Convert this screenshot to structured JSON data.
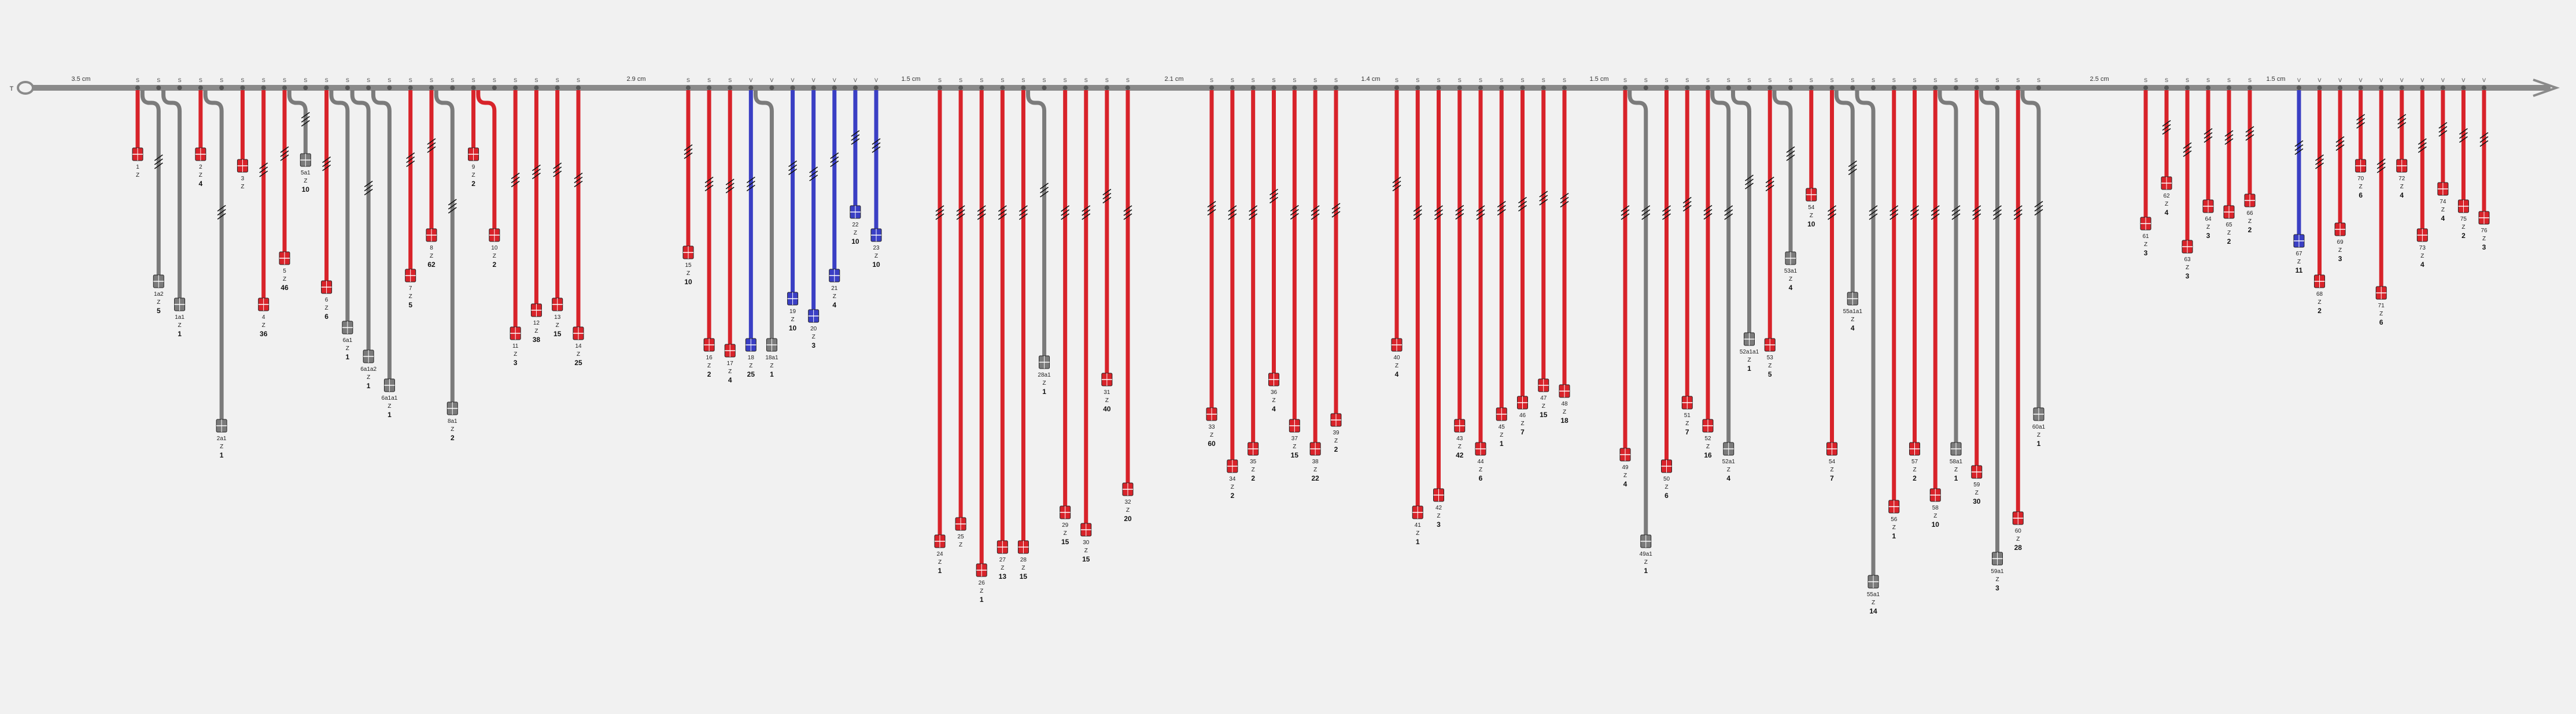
{
  "colors": {
    "red": "#d8232a",
    "blue": "#3a3fc4",
    "gray": "#7b7b7b",
    "trunk": "#8a8a8a",
    "background": "#f1f1f1"
  },
  "trunk": {
    "left_label": "T",
    "segment_labels": [
      "3.5 cm",
      "2.9 cm",
      "1.5 cm",
      "2.1 cm",
      "1.4 cm",
      "1.5 cm",
      "2.5 cm",
      "1.5 cm"
    ]
  },
  "legend_symbols": {
    "splice": "S",
    "v_splice": "V",
    "conn_marker": "Z"
  },
  "groups": [
    {
      "name": "group-1",
      "nodes": [
        {
          "code": "S",
          "wires": [
            {
              "c": "red",
              "len": 0.1,
              "id": "1",
              "q": ""
            },
            {
              "c": "gray",
              "len": 0.32,
              "id": "1a2",
              "q": "5",
              "curve": true,
              "zig": true
            },
            {
              "c": "gray",
              "len": 0.36,
              "id": "1a1",
              "q": "1",
              "curve": true
            }
          ]
        },
        {
          "code": "S",
          "wires": [
            {
              "c": "red",
              "len": 0.1,
              "id": "2",
              "q": "4"
            },
            {
              "c": "gray",
              "len": 0.57,
              "id": "2a1",
              "q": "1",
              "curve": true,
              "zig": true
            }
          ]
        },
        {
          "code": "S",
          "wires": [
            {
              "c": "red",
              "len": 0.12,
              "id": "3",
              "q": ""
            }
          ]
        },
        {
          "code": "S",
          "wires": [
            {
              "c": "red",
              "len": 0.36,
              "id": "4",
              "q": "36",
              "zig": true
            },
            {
              "c": "red",
              "len": 0.28,
              "id": "5",
              "q": "46",
              "zig": true
            }
          ]
        },
        {
          "code": "S",
          "wires": [
            {
              "c": "gray",
              "len": 0.11,
              "id": "5a1",
              "q": "10",
              "curve": true,
              "zig": true
            }
          ]
        },
        {
          "code": "S",
          "wires": [
            {
              "c": "red",
              "len": 0.33,
              "id": "6",
              "q": "6",
              "zig": true
            },
            {
              "c": "gray",
              "len": 0.4,
              "id": "6a1",
              "q": "1",
              "curve": true
            },
            {
              "c": "gray",
              "len": 0.45,
              "id": "6a1a2",
              "q": "1",
              "curve": true,
              "zig": true
            },
            {
              "c": "gray",
              "len": 0.5,
              "id": "6a1a1",
              "q": "1",
              "curve": true
            }
          ]
        },
        {
          "code": "S",
          "wires": [
            {
              "c": "red",
              "len": 0.31,
              "id": "7",
              "q": "5",
              "zig": true
            },
            {
              "c": "red",
              "len": 0.24,
              "id": "8",
              "q": "62",
              "zig": true
            },
            {
              "c": "gray",
              "len": 0.54,
              "id": "8a1",
              "q": "2",
              "curve": true,
              "zig": true
            }
          ]
        },
        {
          "code": "S",
          "wires": [
            {
              "c": "red",
              "len": 0.1,
              "id": "9",
              "q": "2"
            },
            {
              "c": "red",
              "len": 0.24,
              "id": "10",
              "q": "2",
              "curve": true
            }
          ]
        },
        {
          "code": "S",
          "wires": [
            {
              "c": "red",
              "len": 0.41,
              "id": "11",
              "q": "3",
              "zig": true
            },
            {
              "c": "red",
              "len": 0.37,
              "id": "12",
              "q": "38",
              "zig": true
            },
            {
              "c": "red",
              "len": 0.36,
              "id": "13",
              "q": "15",
              "zig": true
            },
            {
              "c": "red",
              "len": 0.41,
              "id": "14",
              "q": "25",
              "zig": true
            }
          ]
        }
      ]
    },
    {
      "name": "group-2",
      "nodes": [
        {
          "code": "S",
          "wires": [
            {
              "c": "red",
              "len": 0.27,
              "id": "15",
              "q": "10",
              "zig": true
            },
            {
              "c": "red",
              "len": 0.43,
              "id": "16",
              "q": "2",
              "zig": true
            },
            {
              "c": "red",
              "len": 0.44,
              "id": "17",
              "q": "4",
              "zig": true
            }
          ]
        },
        {
          "code": "V",
          "wires": [
            {
              "c": "blue",
              "len": 0.43,
              "id": "18",
              "q": "25",
              "zig": true
            },
            {
              "c": "gray",
              "len": 0.43,
              "id": "18a1",
              "q": "1",
              "curve": true
            }
          ]
        },
        {
          "code": "V",
          "wires": [
            {
              "c": "blue",
              "len": 0.35,
              "id": "19",
              "q": "10",
              "zig": true
            },
            {
              "c": "blue",
              "len": 0.38,
              "id": "20",
              "q": "3",
              "zig": true
            },
            {
              "c": "blue",
              "len": 0.31,
              "id": "21",
              "q": "4",
              "zig": true
            },
            {
              "c": "blue",
              "len": 0.2,
              "id": "22",
              "q": "10",
              "zig": true
            },
            {
              "c": "blue",
              "len": 0.24,
              "id": "23",
              "q": "10",
              "zig": true
            }
          ]
        }
      ]
    },
    {
      "name": "group-3",
      "nodes": [
        {
          "code": "S",
          "wires": [
            {
              "c": "red",
              "len": 0.77,
              "id": "24",
              "q": "1",
              "zig": true
            },
            {
              "c": "red",
              "len": 0.74,
              "id": "25",
              "q": "",
              "zig": true
            },
            {
              "c": "red",
              "len": 0.82,
              "id": "26",
              "q": "1",
              "zig": true
            },
            {
              "c": "red",
              "len": 0.78,
              "id": "27",
              "q": "13",
              "zig": true
            },
            {
              "c": "red",
              "len": 0.78,
              "id": "28",
              "q": "15",
              "zig": true
            },
            {
              "c": "gray",
              "len": 0.46,
              "id": "28a1",
              "q": "1",
              "curve": true,
              "zig": true
            },
            {
              "c": "red",
              "len": 0.72,
              "id": "29",
              "q": "15",
              "zig": true
            },
            {
              "c": "red",
              "len": 0.75,
              "id": "30",
              "q": "15",
              "zig": true
            },
            {
              "c": "red",
              "len": 0.49,
              "id": "31",
              "q": "40",
              "zig": true
            },
            {
              "c": "red",
              "len": 0.68,
              "id": "32",
              "q": "20",
              "zig": true
            }
          ]
        }
      ]
    },
    {
      "name": "group-4",
      "nodes": [
        {
          "code": "S",
          "wires": [
            {
              "c": "red",
              "len": 0.55,
              "id": "33",
              "q": "60",
              "zig": true
            },
            {
              "c": "red",
              "len": 0.64,
              "id": "34",
              "q": "2",
              "zig": true
            },
            {
              "c": "red",
              "len": 0.61,
              "id": "35",
              "q": "2",
              "zig": true
            },
            {
              "c": "red",
              "len": 0.49,
              "id": "36",
              "q": "4",
              "zig": true
            },
            {
              "c": "red",
              "len": 0.57,
              "id": "37",
              "q": "15",
              "zig": true
            },
            {
              "c": "red",
              "len": 0.61,
              "id": "38",
              "q": "22",
              "zig": true
            },
            {
              "c": "red",
              "len": 0.56,
              "id": "39",
              "q": "2",
              "zig": true
            }
          ]
        }
      ]
    },
    {
      "name": "group-5",
      "nodes": [
        {
          "code": "S",
          "wires": [
            {
              "c": "red",
              "len": 0.43,
              "id": "40",
              "q": "4",
              "zig": true
            },
            {
              "c": "red",
              "len": 0.72,
              "id": "41",
              "q": "1",
              "zig": true
            },
            {
              "c": "red",
              "len": 0.69,
              "id": "42",
              "q": "3",
              "zig": true
            },
            {
              "c": "red",
              "len": 0.57,
              "id": "43",
              "q": "42",
              "zig": true
            },
            {
              "c": "red",
              "len": 0.61,
              "id": "44",
              "q": "6",
              "zig": true
            },
            {
              "c": "red",
              "len": 0.55,
              "id": "45",
              "q": "1",
              "zig": true
            },
            {
              "c": "red",
              "len": 0.53,
              "id": "46",
              "q": "7",
              "zig": true
            },
            {
              "c": "red",
              "len": 0.5,
              "id": "47",
              "q": "15",
              "zig": true
            },
            {
              "c": "red",
              "len": 0.51,
              "id": "48",
              "q": "18",
              "zig": true
            }
          ]
        }
      ]
    },
    {
      "name": "group-6",
      "nodes": [
        {
          "code": "S",
          "wires": [
            {
              "c": "red",
              "len": 0.62,
              "id": "49",
              "q": "4",
              "zig": true
            },
            {
              "c": "gray",
              "len": 0.77,
              "id": "49a1",
              "q": "1",
              "curve": true,
              "zig": true
            },
            {
              "c": "red",
              "len": 0.64,
              "id": "50",
              "q": "6",
              "zig": true
            },
            {
              "c": "red",
              "len": 0.53,
              "id": "51",
              "q": "7",
              "zig": true
            },
            {
              "c": "red",
              "len": 0.57,
              "id": "52",
              "q": "16",
              "zig": true
            },
            {
              "c": "gray",
              "len": 0.61,
              "id": "52a1",
              "q": "4",
              "curve": true,
              "zig": true
            },
            {
              "c": "gray",
              "len": 0.42,
              "id": "52a1a1",
              "q": "1",
              "curve": true,
              "zig": true
            },
            {
              "c": "red",
              "len": 0.43,
              "id": "53",
              "q": "5",
              "zig": true
            },
            {
              "c": "gray",
              "len": 0.28,
              "id": "53a1",
              "q": "4",
              "curve": true,
              "zig": true
            },
            {
              "c": "red",
              "len": 0.17,
              "id": "54",
              "q": "10"
            },
            {
              "c": "red",
              "len": 0.61,
              "id": "54",
              "q": "7",
              "zig": true
            },
            {
              "c": "gray",
              "len": 0.35,
              "id": "55a1a1",
              "q": "4",
              "curve": true,
              "zig": true
            },
            {
              "c": "gray",
              "len": 0.84,
              "id": "55a1",
              "q": "14",
              "curve": true,
              "zig": true
            },
            {
              "c": "red",
              "len": 0.71,
              "id": "56",
              "q": "1",
              "zig": true
            },
            {
              "c": "red",
              "len": 0.61,
              "id": "57",
              "q": "2",
              "zig": true
            },
            {
              "c": "red",
              "len": 0.69,
              "id": "58",
              "q": "10",
              "zig": true
            },
            {
              "c": "gray",
              "len": 0.61,
              "id": "58a1",
              "q": "1",
              "curve": true,
              "zig": true
            },
            {
              "c": "red",
              "len": 0.65,
              "id": "59",
              "q": "30",
              "zig": true
            },
            {
              "c": "gray",
              "len": 0.8,
              "id": "59a1",
              "q": "3",
              "curve": true,
              "zig": true
            },
            {
              "c": "red",
              "len": 0.73,
              "id": "60",
              "q": "28",
              "zig": true
            },
            {
              "c": "gray",
              "len": 0.55,
              "id": "60a1",
              "q": "1",
              "curve": true,
              "zig": true
            }
          ]
        }
      ]
    },
    {
      "name": "group-7",
      "nodes": [
        {
          "code": "S",
          "wires": [
            {
              "c": "red",
              "len": 0.22,
              "id": "61",
              "q": "3"
            },
            {
              "c": "red",
              "len": 0.15,
              "id": "62",
              "q": "4",
              "zig": true
            },
            {
              "c": "red",
              "len": 0.26,
              "id": "63",
              "q": "3",
              "zig": true
            },
            {
              "c": "red",
              "len": 0.19,
              "id": "64",
              "q": "3",
              "zig": true
            },
            {
              "c": "red",
              "len": 0.2,
              "id": "65",
              "q": "2",
              "zig": true
            },
            {
              "c": "red",
              "len": 0.18,
              "id": "66",
              "q": "2",
              "zig": true
            }
          ]
        }
      ]
    },
    {
      "name": "group-8",
      "nodes": [
        {
          "code": "V",
          "wires": [
            {
              "c": "blue",
              "len": 0.25,
              "id": "67",
              "q": "11",
              "zig": true
            },
            {
              "c": "red",
              "len": 0.32,
              "id": "68",
              "q": "2",
              "zig": true
            },
            {
              "c": "red",
              "len": 0.23,
              "id": "69",
              "q": "3",
              "zig": true
            },
            {
              "c": "red",
              "len": 0.12,
              "id": "70",
              "q": "6",
              "zig": true
            },
            {
              "c": "red",
              "len": 0.34,
              "id": "71",
              "q": "6",
              "zig": true
            },
            {
              "c": "red",
              "len": 0.12,
              "id": "72",
              "q": "4",
              "zig": true
            },
            {
              "c": "red",
              "len": 0.24,
              "id": "73",
              "q": "4",
              "zig": true
            },
            {
              "c": "red",
              "len": 0.16,
              "id": "74",
              "q": "4",
              "zig": true
            },
            {
              "c": "red",
              "len": 0.19,
              "id": "75",
              "q": "2",
              "zig": true
            },
            {
              "c": "red",
              "len": 0.21,
              "id": "76",
              "q": "3",
              "zig": true
            }
          ]
        }
      ]
    }
  ]
}
